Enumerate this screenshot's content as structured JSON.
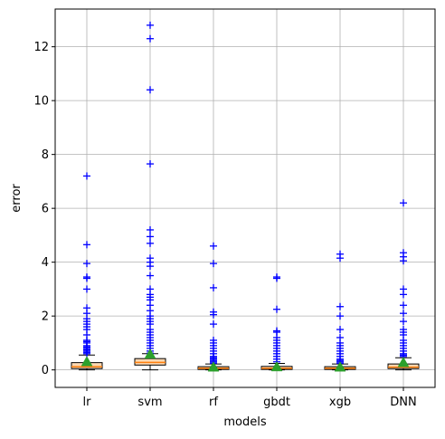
{
  "chart_data": {
    "type": "box",
    "xlabel": "models",
    "ylabel": "error",
    "ylim": [
      -0.65,
      13.4
    ],
    "yticks": [
      0,
      2,
      4,
      6,
      8,
      10,
      12
    ],
    "grid": true,
    "categories": [
      "lr",
      "svm",
      "rf",
      "gbdt",
      "xgb",
      "DNN"
    ],
    "series": [
      {
        "category": "lr",
        "whisker_low": 0.0,
        "q1": 0.05,
        "median": 0.12,
        "q3": 0.27,
        "whisker_high": 0.55,
        "mean": 0.3,
        "outliers": [
          0.6,
          0.65,
          0.7,
          0.75,
          0.8,
          0.85,
          0.9,
          1.0,
          1.05,
          1.1,
          1.3,
          1.5,
          1.6,
          1.7,
          1.8,
          1.9,
          2.1,
          2.3,
          3.0,
          3.4,
          3.45,
          3.95,
          4.65,
          7.2
        ]
      },
      {
        "category": "svm",
        "whisker_low": 0.0,
        "q1": 0.18,
        "median": 0.28,
        "q3": 0.42,
        "whisker_high": 0.6,
        "mean": 0.58,
        "outliers": [
          0.62,
          0.7,
          0.8,
          0.9,
          1.0,
          1.1,
          1.2,
          1.3,
          1.4,
          1.5,
          1.7,
          1.8,
          1.9,
          2.0,
          2.2,
          2.4,
          2.6,
          2.7,
          2.8,
          3.0,
          3.5,
          3.85,
          4.0,
          4.15,
          4.7,
          4.95,
          5.2,
          7.65,
          10.4,
          12.3,
          12.8
        ]
      },
      {
        "category": "rf",
        "whisker_low": 0.0,
        "q1": 0.02,
        "median": 0.06,
        "q3": 0.12,
        "whisker_high": 0.22,
        "mean": 0.1,
        "outliers": [
          0.25,
          0.3,
          0.35,
          0.4,
          0.45,
          0.5,
          0.6,
          0.7,
          0.8,
          0.9,
          1.0,
          1.1,
          1.7,
          2.05,
          2.15,
          3.05,
          3.95,
          4.6
        ]
      },
      {
        "category": "gbdt",
        "whisker_low": 0.0,
        "q1": 0.02,
        "median": 0.06,
        "q3": 0.13,
        "whisker_high": 0.24,
        "mean": 0.11,
        "outliers": [
          0.3,
          0.4,
          0.5,
          0.6,
          0.7,
          0.8,
          0.9,
          1.0,
          1.1,
          1.2,
          1.4,
          1.45,
          2.25,
          3.4,
          3.45
        ]
      },
      {
        "category": "xgb",
        "whisker_low": 0.0,
        "q1": 0.02,
        "median": 0.06,
        "q3": 0.12,
        "whisker_high": 0.22,
        "mean": 0.1,
        "outliers": [
          0.25,
          0.3,
          0.35,
          0.4,
          0.5,
          0.6,
          0.7,
          0.8,
          0.9,
          1.0,
          1.2,
          1.5,
          2.0,
          2.35,
          4.15,
          4.3
        ]
      },
      {
        "category": "DNN",
        "whisker_low": 0.0,
        "q1": 0.05,
        "median": 0.1,
        "q3": 0.22,
        "whisker_high": 0.45,
        "mean": 0.27,
        "outliers": [
          0.5,
          0.55,
          0.6,
          0.7,
          0.8,
          0.9,
          1.0,
          1.1,
          1.3,
          1.4,
          1.5,
          1.8,
          2.1,
          2.4,
          2.8,
          3.0,
          4.05,
          4.2,
          4.35,
          6.2
        ]
      }
    ],
    "colors": {
      "box_fill": "#fdd9b3",
      "box_edge": "#000000",
      "median": "#ff7f0e",
      "mean_marker": "#2ca02c",
      "outlier": "#0000ff",
      "grid": "#b0b0b0",
      "axis": "#000000"
    }
  }
}
